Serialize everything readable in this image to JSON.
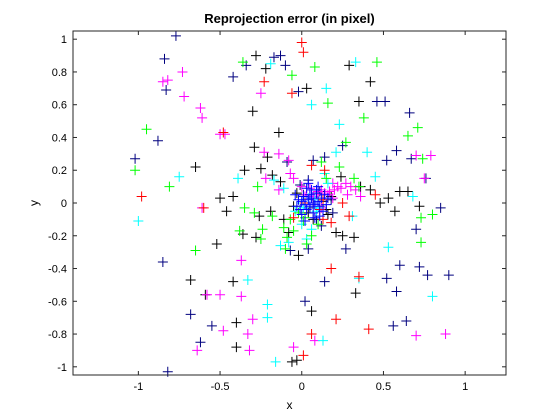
{
  "chart_data": {
    "type": "scatter",
    "title": "Reprojection error (in pixel)",
    "xlabel": "x",
    "ylabel": "y",
    "xlim": [
      -1.4,
      1.25
    ],
    "ylim": [
      -1.05,
      1.05
    ],
    "xticks": [
      -1,
      -0.5,
      0,
      0.5,
      1
    ],
    "yticks": [
      -1,
      -0.8,
      -0.6,
      -0.4,
      -0.2,
      0,
      0.2,
      0.4,
      0.6,
      0.8,
      1
    ],
    "xtick_labels": [
      "-1",
      "-0.5",
      "0",
      "0.5",
      "1"
    ],
    "ytick_labels": [
      "-1",
      "-0.8",
      "-0.6",
      "-0.4",
      "-0.2",
      "0",
      "0.2",
      "0.4",
      "0.6",
      "0.8",
      "1"
    ],
    "marker": "+",
    "grid": false,
    "legend": "none",
    "series": [
      {
        "color": "#000000",
        "points": [
          [
            -0.28,
            0.9
          ],
          [
            -0.3,
            0.56
          ],
          [
            -0.22,
            0.82
          ],
          [
            -0.14,
            0.43
          ],
          [
            -0.21,
            0.28
          ],
          [
            -0.29,
            0.34
          ],
          [
            -0.35,
            0.2
          ],
          [
            -0.42,
            0.04
          ],
          [
            -0.5,
            0.03
          ],
          [
            -0.52,
            -0.25
          ],
          [
            -0.46,
            -0.05
          ],
          [
            -0.42,
            -0.48
          ],
          [
            -0.36,
            -0.19
          ],
          [
            -0.28,
            -0.21
          ],
          [
            -0.19,
            -0.05
          ],
          [
            -0.11,
            -0.1
          ],
          [
            -0.05,
            -0.02
          ],
          [
            -0.08,
            -0.18
          ],
          [
            -0.02,
            -0.32
          ],
          [
            0.07,
            -0.1
          ],
          [
            0.1,
            0.06
          ],
          [
            0.15,
            -0.04
          ],
          [
            0.21,
            -0.18
          ],
          [
            0.25,
            -0.2
          ],
          [
            0.32,
            -0.21
          ],
          [
            0.36,
            0.1
          ],
          [
            0.42,
            0.08
          ],
          [
            0.48,
            0.0
          ],
          [
            0.53,
            0.03
          ],
          [
            0.57,
            -0.05
          ],
          [
            0.6,
            0.07
          ],
          [
            0.65,
            0.07
          ],
          [
            0.72,
            -0.02
          ],
          [
            0.35,
            0.62
          ],
          [
            0.42,
            0.74
          ],
          [
            0.29,
            0.84
          ],
          [
            0.03,
            0.7
          ],
          [
            -0.59,
            -0.56
          ],
          [
            -0.65,
            0.22
          ],
          [
            -0.68,
            -0.47
          ],
          [
            0.33,
            -0.55
          ],
          [
            0.06,
            -0.66
          ],
          [
            -0.03,
            -0.96
          ],
          [
            -0.06,
            -0.97
          ],
          [
            -0.4,
            -0.88
          ],
          [
            -0.4,
            -0.73
          ],
          [
            0.13,
            0.01
          ],
          [
            0.16,
            -0.07
          ],
          [
            0.18,
            0.04
          ],
          [
            -0.25,
            0.21
          ],
          [
            -0.18,
            0.17
          ],
          [
            -0.13,
            0.13
          ],
          [
            -0.26,
            -0.08
          ],
          [
            -0.03,
            0.06
          ],
          [
            0.04,
            -0.06
          ],
          [
            0.24,
            0.16
          ]
        ]
      },
      {
        "color": "#00007f",
        "points": [
          [
            -1.02,
            0.27
          ],
          [
            -0.88,
            0.38
          ],
          [
            -0.84,
            0.88
          ],
          [
            -0.77,
            1.02
          ],
          [
            -0.83,
            0.69
          ],
          [
            -0.85,
            -0.36
          ],
          [
            -0.82,
            -1.03
          ],
          [
            -0.68,
            -0.68
          ],
          [
            -0.62,
            -0.85
          ],
          [
            -0.55,
            -0.75
          ],
          [
            -0.42,
            0.77
          ],
          [
            -0.34,
            0.84
          ],
          [
            -0.17,
            0.89
          ],
          [
            -0.1,
            0.84
          ],
          [
            -0.09,
            0.25
          ],
          [
            0.01,
            0.05
          ],
          [
            0.05,
            -0.03
          ],
          [
            0.12,
            -0.14
          ],
          [
            0.18,
            0.02
          ],
          [
            0.09,
            -0.1
          ],
          [
            0.52,
            0.26
          ],
          [
            0.46,
            0.62
          ],
          [
            0.58,
            0.32
          ],
          [
            0.66,
            0.55
          ],
          [
            0.67,
            0.27
          ],
          [
            0.76,
            0.15
          ],
          [
            0.85,
            -0.03
          ],
          [
            0.7,
            -0.16
          ],
          [
            0.72,
            -0.39
          ],
          [
            0.77,
            -0.44
          ],
          [
            0.9,
            -0.44
          ],
          [
            0.6,
            -0.38
          ],
          [
            0.52,
            -0.46
          ],
          [
            0.58,
            -0.54
          ],
          [
            0.64,
            -0.72
          ],
          [
            0.51,
            0.62
          ],
          [
            0.56,
            -0.75
          ],
          [
            0.14,
            -0.48
          ],
          [
            0.27,
            -0.28
          ],
          [
            -0.13,
            0.9
          ],
          [
            -0.02,
            0.68
          ],
          [
            0.04,
            -0.28
          ],
          [
            -0.07,
            -0.29
          ],
          [
            0.02,
            -0.6
          ],
          [
            0.07,
            0.26
          ],
          [
            0.14,
            0.28
          ],
          [
            0.25,
            0.35
          ],
          [
            0.19,
            -0.06
          ],
          [
            0.11,
            0.07
          ],
          [
            0.04,
            0.14
          ],
          [
            -0.01,
            0.11
          ]
        ]
      },
      {
        "color": "#ff00ff",
        "points": [
          [
            -0.85,
            0.74
          ],
          [
            -0.82,
            0.75
          ],
          [
            -0.73,
            0.8
          ],
          [
            -0.72,
            0.65
          ],
          [
            -0.62,
            0.58
          ],
          [
            -0.61,
            0.52
          ],
          [
            -0.5,
            0.42
          ],
          [
            -0.47,
            0.42
          ],
          [
            -0.25,
            0.67
          ],
          [
            -0.23,
            0.31
          ],
          [
            -0.14,
            0.3
          ],
          [
            -0.08,
            0.26
          ],
          [
            -0.07,
            0.18
          ],
          [
            -0.05,
            0.15
          ],
          [
            0.0,
            0.1
          ],
          [
            0.03,
            0.05
          ],
          [
            0.07,
            0.04
          ],
          [
            0.1,
            0.07
          ],
          [
            0.12,
            0.08
          ],
          [
            0.14,
            0.06
          ],
          [
            0.17,
            0.07
          ],
          [
            0.2,
            0.08
          ],
          [
            0.22,
            0.1
          ],
          [
            0.24,
            0.09
          ],
          [
            0.27,
            0.12
          ],
          [
            0.3,
            0.1
          ],
          [
            0.33,
            0.08
          ],
          [
            0.36,
            0.04
          ],
          [
            0.16,
            0.05
          ],
          [
            0.09,
            0.05
          ],
          [
            0.7,
            0.29
          ],
          [
            0.79,
            0.29
          ],
          [
            0.75,
            0.15
          ],
          [
            0.7,
            -0.81
          ],
          [
            0.88,
            -0.8
          ],
          [
            -0.61,
            -0.03
          ],
          [
            -0.58,
            -0.56
          ],
          [
            -0.5,
            -0.56
          ],
          [
            -0.37,
            -0.57
          ],
          [
            -0.37,
            -0.35
          ],
          [
            -0.33,
            -0.8
          ],
          [
            -0.32,
            -0.9
          ],
          [
            -0.3,
            -0.71
          ],
          [
            -0.22,
            0.15
          ],
          [
            -0.14,
            0.08
          ],
          [
            -0.05,
            -0.88
          ],
          [
            0.08,
            -0.84
          ],
          [
            0.02,
            0.04
          ],
          [
            0.05,
            0.09
          ],
          [
            0.12,
            -0.03
          ],
          [
            0.19,
            0.03
          ],
          [
            0.28,
            0.05
          ],
          [
            -0.48,
            -0.78
          ],
          [
            -0.64,
            -0.9
          ],
          [
            0.19,
            0.12
          ]
        ]
      },
      {
        "color": "#00ffff",
        "points": [
          [
            -1.0,
            -0.11
          ],
          [
            -0.75,
            0.16
          ],
          [
            -0.33,
            -0.47
          ],
          [
            -0.21,
            -0.7
          ],
          [
            -0.16,
            -0.97
          ],
          [
            0.13,
            -0.84
          ],
          [
            -0.39,
            0.15
          ],
          [
            -0.19,
            0.85
          ],
          [
            -0.11,
            0.09
          ],
          [
            -0.04,
            -0.05
          ],
          [
            0.0,
            -0.13
          ],
          [
            0.06,
            -0.16
          ],
          [
            0.14,
            0.18
          ],
          [
            0.21,
            0.31
          ],
          [
            0.23,
            0.48
          ],
          [
            0.15,
            0.7
          ],
          [
            0.06,
            0.6
          ],
          [
            0.33,
            0.86
          ],
          [
            0.4,
            0.31
          ],
          [
            0.45,
            0.16
          ],
          [
            0.31,
            -0.08
          ],
          [
            0.35,
            -0.46
          ],
          [
            0.53,
            -0.27
          ],
          [
            0.8,
            -0.57
          ],
          [
            0.68,
            0.04
          ],
          [
            0.0,
            0.0
          ],
          [
            0.04,
            0.03
          ],
          [
            0.1,
            -0.03
          ],
          [
            0.16,
            0.12
          ],
          [
            0.08,
            0.02
          ],
          [
            -0.13,
            -0.26
          ],
          [
            0.03,
            -0.22
          ],
          [
            0.09,
            -0.05
          ],
          [
            -0.08,
            -0.24
          ],
          [
            -0.17,
            0.14
          ],
          [
            0.01,
            -0.03
          ],
          [
            -0.21,
            -0.62
          ]
        ]
      },
      {
        "color": "#00ff00",
        "points": [
          [
            -1.02,
            0.2
          ],
          [
            -0.95,
            0.45
          ],
          [
            -0.81,
            0.1
          ],
          [
            -0.65,
            -0.29
          ],
          [
            -0.38,
            -0.17
          ],
          [
            -0.29,
            -0.06
          ],
          [
            -0.25,
            -0.22
          ],
          [
            -0.11,
            -0.15
          ],
          [
            -0.09,
            -0.21
          ],
          [
            -0.05,
            -0.17
          ],
          [
            0.02,
            -0.09
          ],
          [
            0.06,
            -0.2
          ],
          [
            0.15,
            0.15
          ],
          [
            0.12,
            0.25
          ],
          [
            0.23,
            0.22
          ],
          [
            0.27,
            0.37
          ],
          [
            0.35,
            0.1
          ],
          [
            0.38,
            0.52
          ],
          [
            0.46,
            0.86
          ],
          [
            0.65,
            0.41
          ],
          [
            0.71,
            0.46
          ],
          [
            0.74,
            0.27
          ],
          [
            0.73,
            -0.09
          ],
          [
            0.8,
            -0.07
          ],
          [
            0.73,
            -0.24
          ],
          [
            0.16,
            0.61
          ],
          [
            0.08,
            0.83
          ],
          [
            -0.36,
            0.86
          ],
          [
            -0.06,
            0.78
          ],
          [
            -0.27,
            0.1
          ],
          [
            0.01,
            -0.11
          ],
          [
            -0.1,
            -0.28
          ],
          [
            -0.02,
            -0.06
          ],
          [
            0.1,
            -0.13
          ],
          [
            -0.18,
            -0.08
          ],
          [
            -0.07,
            -0.1
          ],
          [
            0.32,
            0.15
          ],
          [
            -0.35,
            -0.03
          ],
          [
            -0.24,
            -0.16
          ],
          [
            0.03,
            -0.25
          ]
        ]
      },
      {
        "color": "#ff0000",
        "points": [
          [
            -0.98,
            0.04
          ],
          [
            -0.6,
            -0.03
          ],
          [
            0.0,
            0.98
          ],
          [
            0.01,
            0.92
          ],
          [
            -0.23,
            0.74
          ],
          [
            -0.06,
            0.67
          ],
          [
            0.06,
            0.23
          ],
          [
            0.14,
            0.2
          ],
          [
            0.25,
            0.0
          ],
          [
            0.29,
            -0.08
          ],
          [
            0.18,
            -0.12
          ],
          [
            0.18,
            -0.4
          ],
          [
            0.41,
            -0.77
          ],
          [
            0.35,
            -0.45
          ],
          [
            0.45,
            0.05
          ],
          [
            0.21,
            -0.71
          ],
          [
            0.06,
            -0.8
          ],
          [
            0.01,
            -0.93
          ],
          [
            -0.05,
            -0.09
          ],
          [
            0.07,
            0.0
          ],
          [
            0.02,
            0.0
          ],
          [
            0.11,
            -0.04
          ],
          [
            0.13,
            -0.1
          ],
          [
            -0.48,
            0.43
          ],
          [
            0.13,
            0.02
          ]
        ]
      },
      {
        "color": "#0000ff",
        "points": [
          [
            0.0,
            0.01
          ],
          [
            0.02,
            -0.01
          ],
          [
            0.04,
            0.02
          ],
          [
            0.06,
            0.03
          ],
          [
            0.08,
            -0.01
          ],
          [
            0.1,
            0.01
          ],
          [
            0.01,
            0.04
          ],
          [
            0.03,
            -0.04
          ],
          [
            0.05,
            0.05
          ],
          [
            0.07,
            -0.06
          ],
          [
            0.09,
            0.06
          ],
          [
            0.11,
            -0.02
          ],
          [
            0.12,
            0.03
          ],
          [
            0.0,
            -0.07
          ],
          [
            -0.02,
            0.02
          ],
          [
            -0.03,
            -0.02
          ],
          [
            0.13,
            -0.05
          ],
          [
            0.14,
            0.05
          ],
          [
            0.06,
            0.08
          ],
          [
            0.03,
            0.09
          ],
          [
            -0.01,
            -0.04
          ],
          [
            0.08,
            -0.09
          ],
          [
            0.02,
            -0.11
          ],
          [
            0.15,
            -0.01
          ],
          [
            0.04,
            0.12
          ],
          [
            0.1,
            0.1
          ],
          [
            0.16,
            0.03
          ],
          [
            -0.04,
            0.05
          ],
          [
            0.11,
            -0.08
          ],
          [
            0.07,
            0.0
          ],
          [
            0.05,
            -0.02
          ],
          [
            0.09,
            0.08
          ]
        ]
      }
    ]
  }
}
